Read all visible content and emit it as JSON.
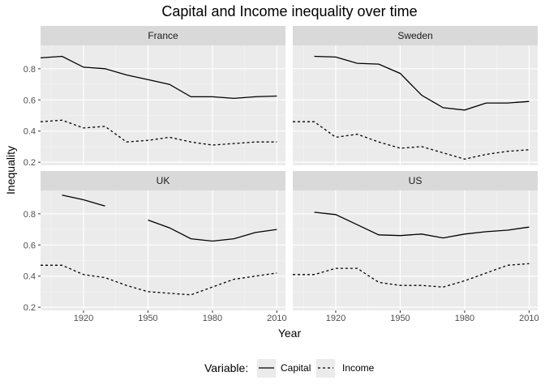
{
  "chart_data": {
    "type": "line",
    "title": "Capital and Income inequality over time",
    "xlabel": "Year",
    "ylabel": "Inequality",
    "xlim": [
      1900,
      2014
    ],
    "ylim": [
      0.18,
      0.95
    ],
    "x_ticks": [
      1920,
      1950,
      1980,
      2010
    ],
    "y_ticks": [
      0.2,
      0.4,
      0.6,
      0.8
    ],
    "grid": true,
    "facet_layout": [
      2,
      2
    ],
    "legend": {
      "title": "Variable:",
      "position": "bottom",
      "entries": [
        {
          "name": "Capital",
          "linetype": "solid"
        },
        {
          "name": "Income",
          "linetype": "dashed"
        }
      ]
    },
    "x": [
      1900,
      1910,
      1920,
      1930,
      1940,
      1950,
      1960,
      1970,
      1980,
      1990,
      2000,
      2010
    ],
    "panels": [
      {
        "name": "France",
        "series": [
          {
            "name": "Capital",
            "values": [
              0.87,
              0.88,
              0.81,
              0.8,
              0.76,
              0.73,
              0.7,
              0.62,
              0.62,
              0.61,
              0.62,
              0.625
            ]
          },
          {
            "name": "Income",
            "values": [
              0.46,
              0.47,
              0.42,
              0.43,
              0.33,
              0.34,
              0.36,
              0.33,
              0.31,
              0.32,
              0.33,
              0.33
            ]
          }
        ]
      },
      {
        "name": "Sweden",
        "series": [
          {
            "name": "Capital",
            "values": [
              null,
              0.88,
              0.875,
              0.835,
              0.83,
              0.77,
              0.63,
              0.55,
              0.535,
              0.58,
              0.58,
              0.59
            ]
          },
          {
            "name": "Income",
            "values": [
              0.46,
              0.46,
              0.36,
              0.38,
              0.33,
              0.29,
              0.3,
              0.26,
              0.22,
              0.25,
              0.27,
              0.28
            ]
          }
        ]
      },
      {
        "name": "UK",
        "series": [
          {
            "name": "Capital",
            "values": [
              null,
              0.92,
              0.89,
              0.85,
              null,
              0.76,
              0.71,
              0.64,
              0.625,
              0.64,
              0.68,
              0.7
            ]
          },
          {
            "name": "Income",
            "values": [
              0.47,
              0.47,
              0.41,
              0.39,
              0.34,
              0.3,
              0.29,
              0.28,
              0.33,
              0.38,
              0.4,
              0.42
            ]
          }
        ]
      },
      {
        "name": "US",
        "series": [
          {
            "name": "Capital",
            "values": [
              null,
              0.81,
              0.795,
              0.73,
              0.665,
              0.66,
              0.67,
              0.645,
              0.67,
              0.685,
              0.695,
              0.715
            ]
          },
          {
            "name": "Income",
            "values": [
              0.41,
              0.41,
              0.45,
              0.45,
              0.36,
              0.34,
              0.34,
              0.33,
              0.37,
              0.42,
              0.47,
              0.48
            ]
          }
        ]
      }
    ]
  }
}
